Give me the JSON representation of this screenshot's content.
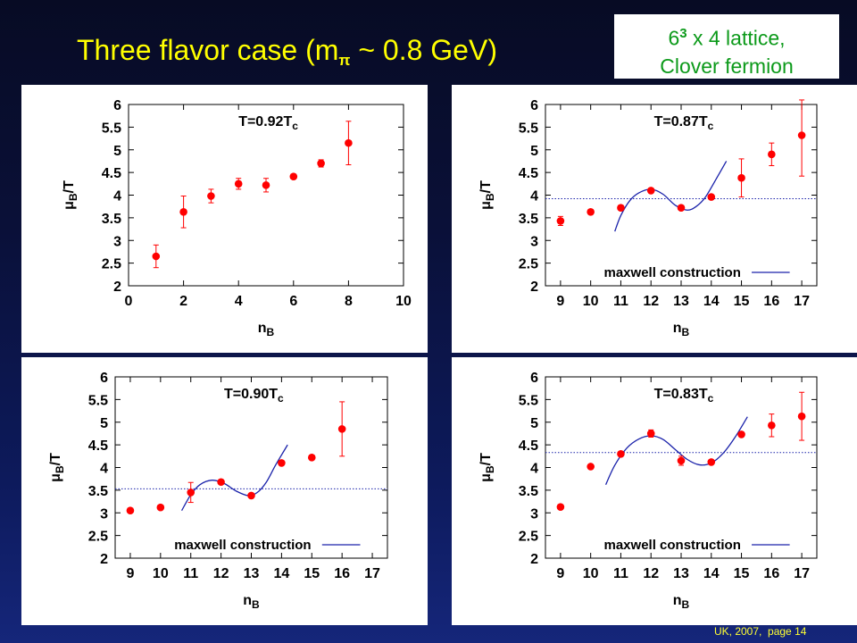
{
  "slide": {
    "title_main": "Three flavor case (m",
    "title_sub": "π",
    "title_rest": " ~ 0.8 GeV)",
    "note_base": "6",
    "note_sup": "3",
    "note_rest": " x 4 lattice,",
    "note_line2": "Clover fermion",
    "footer": "UK, 2007,  page 14",
    "colors": {
      "title": "#ffff00",
      "note_text": "#0c9a1a",
      "footer": "#ffff33",
      "points": "#ff0000",
      "fit_line": "#1a22aa",
      "dotted_line": "#1a22aa"
    }
  },
  "chart_data": [
    {
      "type": "scatter",
      "label_main": "T=0.92T",
      "label_sub": "c",
      "xlabel_main": "n",
      "xlabel_sub": "B",
      "ylabel_main": "μ",
      "ylabel_sub": "B",
      "ylabel_rest": "/T",
      "xlim": [
        0,
        10
      ],
      "ylim": [
        2,
        6
      ],
      "xticks": [
        0,
        2,
        4,
        6,
        8,
        10
      ],
      "yticks": [
        "2",
        "2.5",
        "3",
        "3.5",
        "4",
        "4.5",
        "5",
        "5.5",
        "6"
      ],
      "points": [
        {
          "x": 1,
          "y": 2.65,
          "err": 0.25
        },
        {
          "x": 2,
          "y": 3.63,
          "err": 0.35
        },
        {
          "x": 3,
          "y": 3.98,
          "err": 0.15
        },
        {
          "x": 4,
          "y": 4.25,
          "err": 0.12
        },
        {
          "x": 5,
          "y": 4.22,
          "err": 0.15
        },
        {
          "x": 6,
          "y": 4.41,
          "err": 0.05
        },
        {
          "x": 7,
          "y": 4.7,
          "err": 0.08
        },
        {
          "x": 8,
          "y": 5.15,
          "err": 0.48
        }
      ]
    },
    {
      "type": "scatter",
      "label_main": "T=0.87T",
      "label_sub": "c",
      "xlabel_main": "n",
      "xlabel_sub": "B",
      "ylabel_main": "μ",
      "ylabel_sub": "B",
      "ylabel_rest": "/T",
      "xlim": [
        8.5,
        17.5
      ],
      "ylim": [
        2,
        6
      ],
      "xticks": [
        9,
        10,
        11,
        12,
        13,
        14,
        15,
        16,
        17
      ],
      "yticks": [
        "2",
        "2.5",
        "3",
        "3.5",
        "4",
        "4.5",
        "5",
        "5.5",
        "6"
      ],
      "legend": "maxwell construction",
      "maxwell_level": 3.92,
      "fit_range": [
        10.8,
        14.5
      ],
      "fit_curve": [
        [
          10.8,
          3.2
        ],
        [
          11.0,
          3.55
        ],
        [
          11.3,
          3.88
        ],
        [
          11.6,
          4.05
        ],
        [
          12.0,
          4.13
        ],
        [
          12.4,
          4.02
        ],
        [
          12.8,
          3.78
        ],
        [
          13.2,
          3.67
        ],
        [
          13.5,
          3.75
        ],
        [
          13.8,
          3.95
        ],
        [
          14.2,
          4.4
        ],
        [
          14.5,
          4.75
        ]
      ],
      "points": [
        {
          "x": 9,
          "y": 3.43,
          "err": 0.1
        },
        {
          "x": 10,
          "y": 3.63,
          "err": 0.05
        },
        {
          "x": 11,
          "y": 3.72,
          "err": 0.05
        },
        {
          "x": 12,
          "y": 4.1,
          "err": 0.05
        },
        {
          "x": 13,
          "y": 3.72,
          "err": 0.05
        },
        {
          "x": 14,
          "y": 3.96,
          "err": 0.05
        },
        {
          "x": 15,
          "y": 4.38,
          "err": 0.42
        },
        {
          "x": 16,
          "y": 4.9,
          "err": 0.25
        },
        {
          "x": 17,
          "y": 5.32,
          "err": 0.9
        }
      ]
    },
    {
      "type": "scatter",
      "label_main": "T=0.90T",
      "label_sub": "c",
      "xlabel_main": "n",
      "xlabel_sub": "B",
      "ylabel_main": "μ",
      "ylabel_sub": "B",
      "ylabel_rest": "/T",
      "xlim": [
        8.5,
        17.5
      ],
      "ylim": [
        2,
        6
      ],
      "xticks": [
        9,
        10,
        11,
        12,
        13,
        14,
        15,
        16,
        17
      ],
      "yticks": [
        "2",
        "2.5",
        "3",
        "3.5",
        "4",
        "4.5",
        "5",
        "5.5",
        "6"
      ],
      "legend": "maxwell construction",
      "maxwell_level": 3.53,
      "fit_range": [
        10.7,
        14.2
      ],
      "fit_curve": [
        [
          10.7,
          3.05
        ],
        [
          11.0,
          3.4
        ],
        [
          11.3,
          3.62
        ],
        [
          11.7,
          3.72
        ],
        [
          12.1,
          3.65
        ],
        [
          12.5,
          3.48
        ],
        [
          12.9,
          3.38
        ],
        [
          13.2,
          3.45
        ],
        [
          13.5,
          3.68
        ],
        [
          13.8,
          4.05
        ],
        [
          14.2,
          4.5
        ]
      ],
      "points": [
        {
          "x": 9,
          "y": 3.05,
          "err": 0.04
        },
        {
          "x": 10,
          "y": 3.12,
          "err": 0.04
        },
        {
          "x": 11,
          "y": 3.45,
          "err": 0.22
        },
        {
          "x": 12,
          "y": 3.68,
          "err": 0.04
        },
        {
          "x": 13,
          "y": 3.38,
          "err": 0.05
        },
        {
          "x": 14,
          "y": 4.1,
          "err": 0.05
        },
        {
          "x": 15,
          "y": 4.22,
          "err": 0.05
        },
        {
          "x": 16,
          "y": 4.85,
          "err": 0.6
        }
      ]
    },
    {
      "type": "scatter",
      "label_main": "T=0.83T",
      "label_sub": "c",
      "xlabel_main": "n",
      "xlabel_sub": "B",
      "ylabel_main": "μ",
      "ylabel_sub": "B",
      "ylabel_rest": "/T",
      "xlim": [
        8.5,
        17.5
      ],
      "ylim": [
        2,
        6
      ],
      "xticks": [
        9,
        10,
        11,
        12,
        13,
        14,
        15,
        16,
        17
      ],
      "yticks": [
        "2",
        "2.5",
        "3",
        "3.5",
        "4",
        "4.5",
        "5",
        "5.5",
        "6"
      ],
      "legend": "maxwell construction",
      "maxwell_level": 4.33,
      "fit_range": [
        10.5,
        15.2
      ],
      "fit_curve": [
        [
          10.5,
          3.62
        ],
        [
          10.8,
          4.05
        ],
        [
          11.2,
          4.43
        ],
        [
          11.6,
          4.63
        ],
        [
          12.0,
          4.7
        ],
        [
          12.4,
          4.62
        ],
        [
          12.8,
          4.4
        ],
        [
          13.2,
          4.18
        ],
        [
          13.6,
          4.06
        ],
        [
          14.0,
          4.1
        ],
        [
          14.4,
          4.32
        ],
        [
          14.8,
          4.68
        ],
        [
          15.2,
          5.12
        ]
      ],
      "points": [
        {
          "x": 9,
          "y": 3.13,
          "err": 0.04
        },
        {
          "x": 10,
          "y": 4.02,
          "err": 0.04
        },
        {
          "x": 11,
          "y": 4.3,
          "err": 0.04
        },
        {
          "x": 12,
          "y": 4.75,
          "err": 0.08
        },
        {
          "x": 13,
          "y": 4.15,
          "err": 0.1
        },
        {
          "x": 14,
          "y": 4.12,
          "err": 0.05
        },
        {
          "x": 15,
          "y": 4.73,
          "err": 0.05
        },
        {
          "x": 16,
          "y": 4.93,
          "err": 0.25
        },
        {
          "x": 17,
          "y": 5.13,
          "err": 0.53
        }
      ]
    }
  ]
}
